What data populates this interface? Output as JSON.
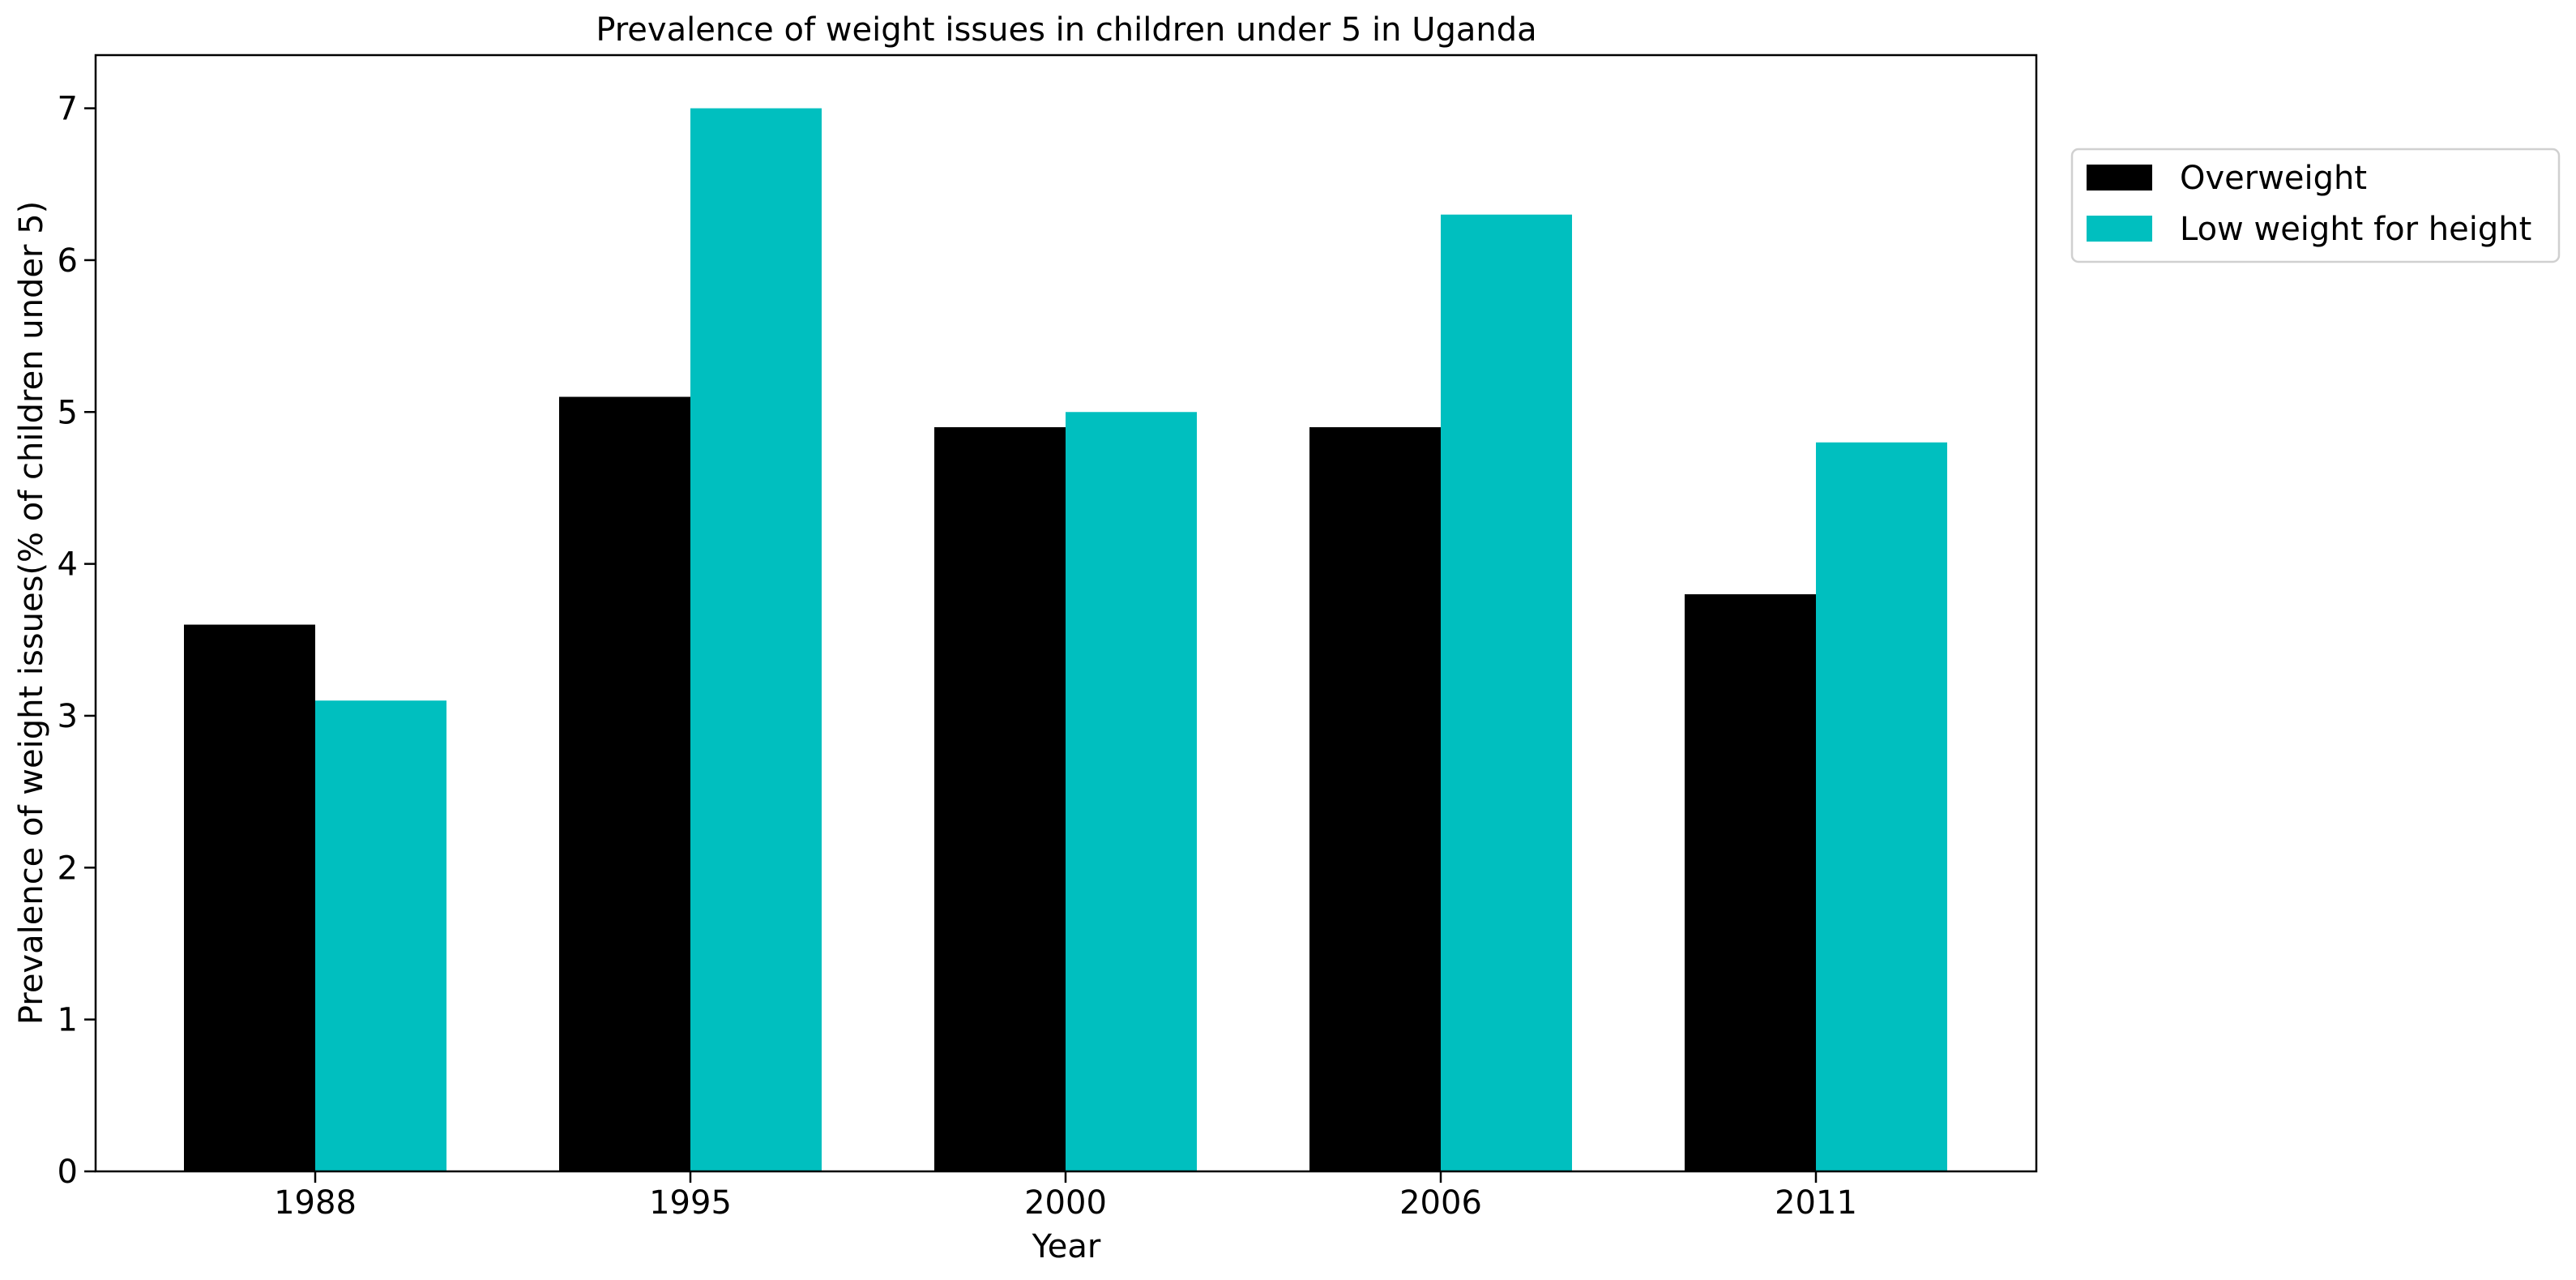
{
  "chart_data": {
    "type": "bar",
    "title": "Prevalence of weight issues in children under 5 in Uganda",
    "xlabel": "Year",
    "ylabel": "Prevalence of weight issues(% of children under 5)",
    "categories": [
      "1988",
      "1995",
      "2000",
      "2006",
      "2011"
    ],
    "series": [
      {
        "name": "Overweight",
        "color": "#000000",
        "values": [
          3.6,
          5.1,
          4.9,
          4.9,
          3.8
        ]
      },
      {
        "name": "Low weight for height",
        "color": "#00bfbf",
        "values": [
          3.1,
          7.0,
          5.0,
          6.3,
          4.8
        ]
      }
    ],
    "ylim": [
      0,
      7.35
    ],
    "yticks": [
      0,
      1,
      2,
      3,
      4,
      5,
      6,
      7
    ],
    "grid": false,
    "legend_position": "outside upper right"
  }
}
